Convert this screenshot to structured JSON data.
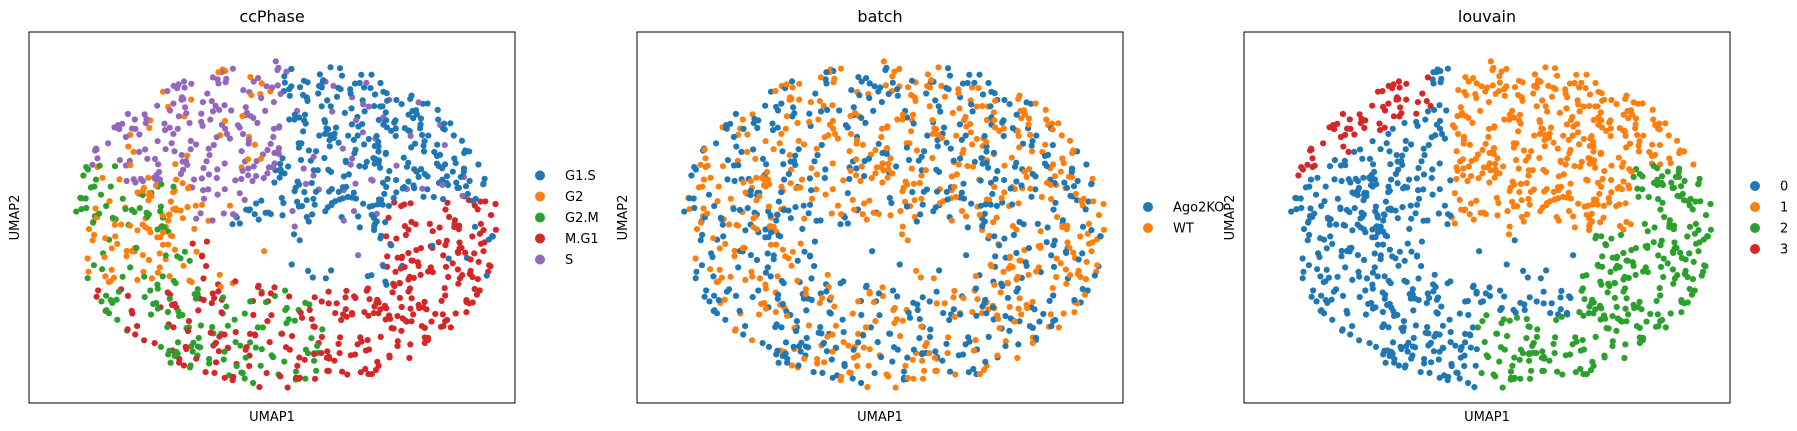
{
  "figure": {
    "panels": [
      {
        "title": "ccPhase",
        "xlabel": "UMAP1",
        "ylabel": "UMAP2",
        "legend": [
          {
            "label": "G1.S",
            "color": "#1f77b4"
          },
          {
            "label": "G2",
            "color": "#ff7f0e"
          },
          {
            "label": "G2.M",
            "color": "#2ca02c"
          },
          {
            "label": "M.G1",
            "color": "#d62728"
          },
          {
            "label": "S",
            "color": "#9467bd"
          }
        ]
      },
      {
        "title": "batch",
        "xlabel": "UMAP1",
        "ylabel": "UMAP2",
        "legend": [
          {
            "label": "Ago2KO",
            "color": "#1f77b4"
          },
          {
            "label": "WT",
            "color": "#ff7f0e"
          }
        ]
      },
      {
        "title": "louvain",
        "xlabel": "UMAP1",
        "ylabel": "UMAP2",
        "legend": [
          {
            "label": "0",
            "color": "#1f77b4"
          },
          {
            "label": "1",
            "color": "#ff7f0e"
          },
          {
            "label": "2",
            "color": "#2ca02c"
          },
          {
            "label": "3",
            "color": "#d62728"
          }
        ]
      }
    ]
  },
  "chart_data": [
    {
      "type": "scatter",
      "title": "ccPhase",
      "xlabel": "UMAP1",
      "ylabel": "UMAP2",
      "xticks": [],
      "yticks": [],
      "grid": false,
      "legend_position": "right",
      "series": [
        {
          "name": "G1.S",
          "color": "#1f77b4",
          "region": "upper-right and right-center of the cell cloud",
          "approx_count": 450
        },
        {
          "name": "G2",
          "color": "#ff7f0e",
          "region": "left side, between purple and green",
          "approx_count": 140
        },
        {
          "name": "G2.M",
          "color": "#2ca02c",
          "region": "lower-left rim and bottom arcs",
          "approx_count": 150
        },
        {
          "name": "M.G1",
          "color": "#d62728",
          "region": "bottom and lower-right",
          "approx_count": 220
        },
        {
          "name": "S",
          "color": "#9467bd",
          "region": "upper-left wedge",
          "approx_count": 150
        }
      ]
    },
    {
      "type": "scatter",
      "title": "batch",
      "xlabel": "UMAP1",
      "ylabel": "UMAP2",
      "xticks": [],
      "yticks": [],
      "grid": false,
      "legend_position": "right",
      "series": [
        {
          "name": "Ago2KO",
          "color": "#1f77b4",
          "region": "mixed throughout",
          "approx_count": 560
        },
        {
          "name": "WT",
          "color": "#ff7f0e",
          "region": "mixed throughout",
          "approx_count": 560
        }
      ]
    },
    {
      "type": "scatter",
      "title": "louvain",
      "xlabel": "UMAP1",
      "ylabel": "UMAP2",
      "xticks": [],
      "yticks": [],
      "grid": false,
      "legend_position": "right",
      "series": [
        {
          "name": "0",
          "color": "#1f77b4",
          "region": "left and center-lower",
          "approx_count": 430
        },
        {
          "name": "1",
          "color": "#ff7f0e",
          "region": "upper-right",
          "approx_count": 380
        },
        {
          "name": "2",
          "color": "#2ca02c",
          "region": "lower-right and bottom arc",
          "approx_count": 180
        },
        {
          "name": "3",
          "color": "#d62728",
          "region": "upper-left rim",
          "approx_count": 110
        }
      ]
    }
  ]
}
